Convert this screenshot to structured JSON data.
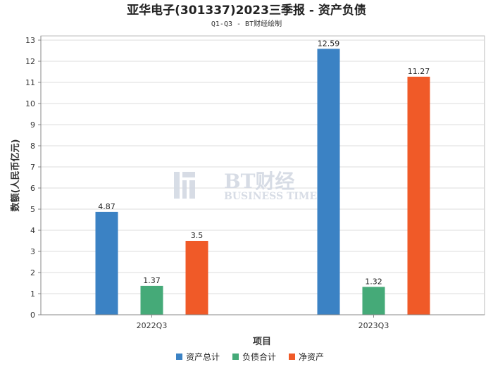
{
  "chart_data": {
    "type": "bar",
    "title": "亚华电子(301337)2023三季报 - 资产负债",
    "subtitle": "Q1-Q3 - BT财经绘制",
    "xlabel": "项目",
    "ylabel": "数额(人民币亿元)",
    "ylim": [
      0,
      13
    ],
    "yticks": [
      0,
      1,
      2,
      3,
      4,
      5,
      6,
      7,
      8,
      9,
      10,
      11,
      12,
      13
    ],
    "categories": [
      "2022Q3",
      "2023Q3"
    ],
    "series": [
      {
        "name": "资产总计",
        "color": "#3b82c4",
        "values": [
          4.87,
          12.59
        ],
        "labels": [
          "4.87",
          "12.59"
        ]
      },
      {
        "name": "负债合计",
        "color": "#45aa78",
        "values": [
          1.37,
          1.32
        ],
        "labels": [
          "1.37",
          "1.32"
        ]
      },
      {
        "name": "净资产",
        "color": "#f05a28",
        "values": [
          3.5,
          11.27
        ],
        "labels": [
          "3.5",
          "11.27"
        ]
      }
    ],
    "grid": true,
    "legend_position": "bottom-center"
  },
  "watermark": {
    "main": "BT财经",
    "sub": "BUSINESS TIMES"
  }
}
